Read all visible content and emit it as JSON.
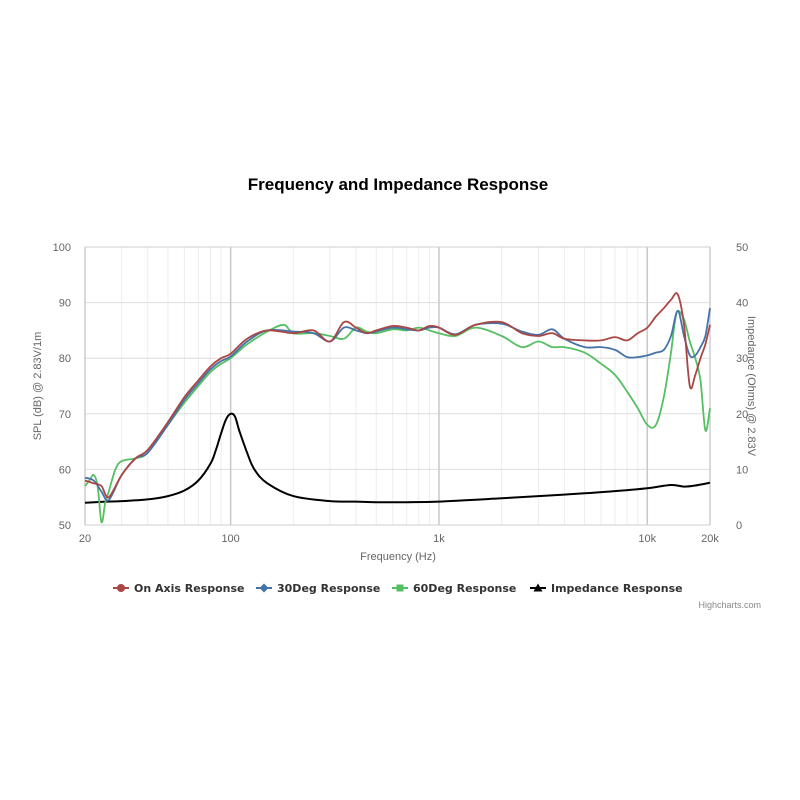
{
  "chart_data": {
    "type": "line",
    "title": "Frequency and Impedance Response",
    "xlabel": "Frequency (Hz)",
    "ylabel": "SPL (dB) @ 2.83V/1m",
    "y2label": "Impedance (Ohms) @ 2.83V",
    "x_scale": "log",
    "xlim": [
      20,
      20000
    ],
    "ylim": [
      50,
      100
    ],
    "y2lim": [
      0,
      50
    ],
    "x_ticks": [
      20,
      100,
      1000,
      10000,
      20000
    ],
    "x_tick_labels": [
      "20",
      "100",
      "1k",
      "10k",
      "20k"
    ],
    "y_ticks": [
      50,
      60,
      70,
      80,
      90,
      100
    ],
    "y2_ticks": [
      0,
      10,
      20,
      30,
      40,
      50
    ],
    "grid": true,
    "legend_position": "bottom-center",
    "credit": "Highcharts.com",
    "series": [
      {
        "name": "On Axis Response",
        "axis": "left",
        "color": "#AA4643",
        "marker": "circle",
        "x": [
          20,
          22,
          24,
          26,
          30,
          35,
          40,
          50,
          60,
          70,
          80,
          90,
          100,
          120,
          150,
          200,
          250,
          300,
          350,
          400,
          450,
          500,
          600,
          700,
          800,
          900,
          1000,
          1200,
          1500,
          2000,
          2500,
          3000,
          3500,
          4000,
          5000,
          6000,
          7000,
          8000,
          9000,
          10000,
          11000,
          12000,
          13000,
          14000,
          15000,
          16000,
          17000,
          18000,
          19000,
          20000
        ],
        "values": [
          58,
          57.5,
          57,
          55,
          59,
          62,
          63.5,
          68.5,
          73,
          76,
          78.5,
          80,
          80.8,
          83.5,
          85,
          84.5,
          85,
          83,
          86.5,
          85.5,
          84.5,
          85,
          85.8,
          85.5,
          85,
          85.8,
          85.5,
          84.2,
          86,
          86.5,
          84.5,
          84,
          84.5,
          83.5,
          83.2,
          83.2,
          83.8,
          83.2,
          84.5,
          85.5,
          87.5,
          89,
          90.5,
          91.5,
          86,
          75,
          77,
          80,
          82.5,
          86
        ]
      },
      {
        "name": "30Deg Response",
        "axis": "left",
        "color": "#4572A7",
        "marker": "diamond",
        "x": [
          20,
          22,
          24,
          26,
          30,
          35,
          40,
          50,
          60,
          70,
          80,
          90,
          100,
          120,
          150,
          200,
          250,
          300,
          350,
          400,
          450,
          500,
          600,
          700,
          800,
          900,
          1000,
          1200,
          1500,
          2000,
          2500,
          3000,
          3500,
          4000,
          5000,
          6000,
          7000,
          8000,
          9000,
          10000,
          11000,
          12000,
          13000,
          14000,
          15000,
          16000,
          17000,
          18000,
          19000,
          20000
        ],
        "values": [
          58.5,
          58,
          56,
          54.5,
          59,
          62,
          63,
          68,
          72.5,
          75.5,
          78,
          79.5,
          80.3,
          83,
          85,
          84.8,
          84.5,
          83,
          85.5,
          85,
          84.5,
          84.8,
          85.5,
          85.2,
          85,
          85.5,
          85.5,
          84.3,
          86,
          86.2,
          84.8,
          84.2,
          85.2,
          83.5,
          82,
          82,
          81.5,
          80.2,
          80.2,
          80.5,
          81,
          81.5,
          84,
          88.5,
          84,
          80.5,
          80.5,
          82,
          84,
          89
        ]
      },
      {
        "name": "60Deg Response",
        "axis": "left",
        "color": "#55BF63",
        "marker": "square",
        "x": [
          20,
          21,
          22,
          23,
          24,
          25,
          26,
          28,
          30,
          35,
          40,
          50,
          60,
          70,
          80,
          90,
          100,
          120,
          150,
          180,
          200,
          250,
          300,
          350,
          400,
          450,
          500,
          600,
          700,
          800,
          900,
          1000,
          1200,
          1500,
          2000,
          2500,
          3000,
          3500,
          4000,
          5000,
          6000,
          7000,
          8000,
          9000,
          10000,
          11000,
          12000,
          13000,
          13500,
          14000,
          15000,
          16000,
          17000,
          18000,
          19000,
          20000
        ],
        "values": [
          57,
          58,
          59,
          57,
          50.5,
          54,
          56,
          60,
          61.5,
          62,
          63,
          68,
          72,
          75,
          77.5,
          79,
          80,
          82.5,
          84.8,
          86,
          84.5,
          84.5,
          84,
          83.5,
          85.5,
          84.8,
          84.5,
          85.2,
          85,
          85.5,
          85,
          84.5,
          84,
          85.5,
          84,
          82,
          83,
          82,
          82,
          81,
          79,
          77,
          74,
          71,
          68,
          68,
          73,
          81,
          86,
          88.5,
          87,
          83,
          80,
          76,
          67,
          71
        ]
      },
      {
        "name": "Impedance Response",
        "axis": "right",
        "color": "#000000",
        "marker": "triangle",
        "x": [
          20,
          25,
          30,
          40,
          50,
          60,
          70,
          80,
          85,
          90,
          95,
          100,
          105,
          110,
          120,
          130,
          150,
          200,
          300,
          400,
          500,
          700,
          1000,
          2000,
          3000,
          5000,
          7000,
          10000,
          13000,
          15000,
          17000,
          20000
        ],
        "values": [
          4,
          4.2,
          4.3,
          4.6,
          5.2,
          6.2,
          8,
          11,
          13.5,
          16.5,
          19,
          20,
          19.5,
          17,
          13,
          10,
          7.5,
          5.2,
          4.3,
          4.2,
          4.1,
          4.1,
          4.2,
          4.8,
          5.2,
          5.7,
          6.1,
          6.6,
          7.2,
          6.9,
          7.1,
          7.6
        ]
      }
    ]
  }
}
